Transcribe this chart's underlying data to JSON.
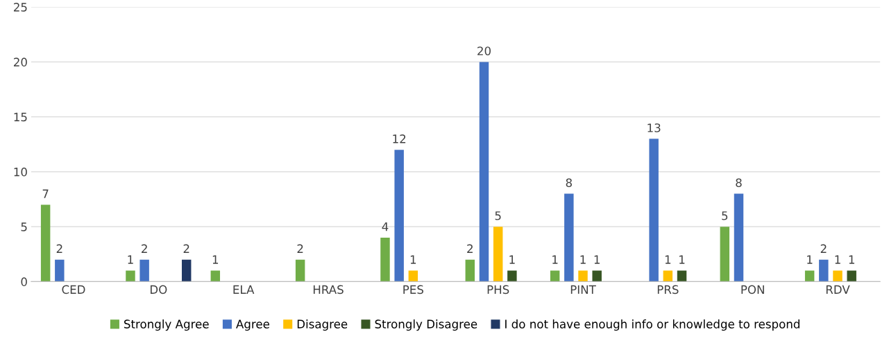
{
  "chart_data": {
    "type": "bar",
    "categories": [
      "CED",
      "DO",
      "ELA",
      "HRAS",
      "PES",
      "PHS",
      "PINT",
      "PRS",
      "PON",
      "RDV"
    ],
    "series": [
      {
        "name": "Strongly Agree",
        "color": "#70ad47",
        "values": [
          7,
          1,
          1,
          2,
          4,
          2,
          1,
          null,
          5,
          1
        ]
      },
      {
        "name": "Agree",
        "color": "#4472c4",
        "values": [
          2,
          2,
          null,
          null,
          12,
          20,
          8,
          13,
          8,
          2
        ]
      },
      {
        "name": "Disagree",
        "color": "#ffc000",
        "values": [
          null,
          null,
          null,
          null,
          1,
          5,
          1,
          1,
          null,
          1
        ]
      },
      {
        "name": "Strongly Disagree",
        "color": "#375623",
        "values": [
          null,
          null,
          null,
          null,
          null,
          1,
          1,
          1,
          null,
          1
        ]
      },
      {
        "name": "I do not have enough info or knowledge to respond",
        "color": "#203864",
        "values": [
          null,
          2,
          null,
          null,
          null,
          null,
          null,
          null,
          null,
          null
        ]
      }
    ],
    "ylim": [
      0,
      25
    ],
    "yticks": [
      0,
      5,
      10,
      15,
      20,
      25
    ],
    "grid": "y",
    "legend": "bottom",
    "data_labels": true
  }
}
